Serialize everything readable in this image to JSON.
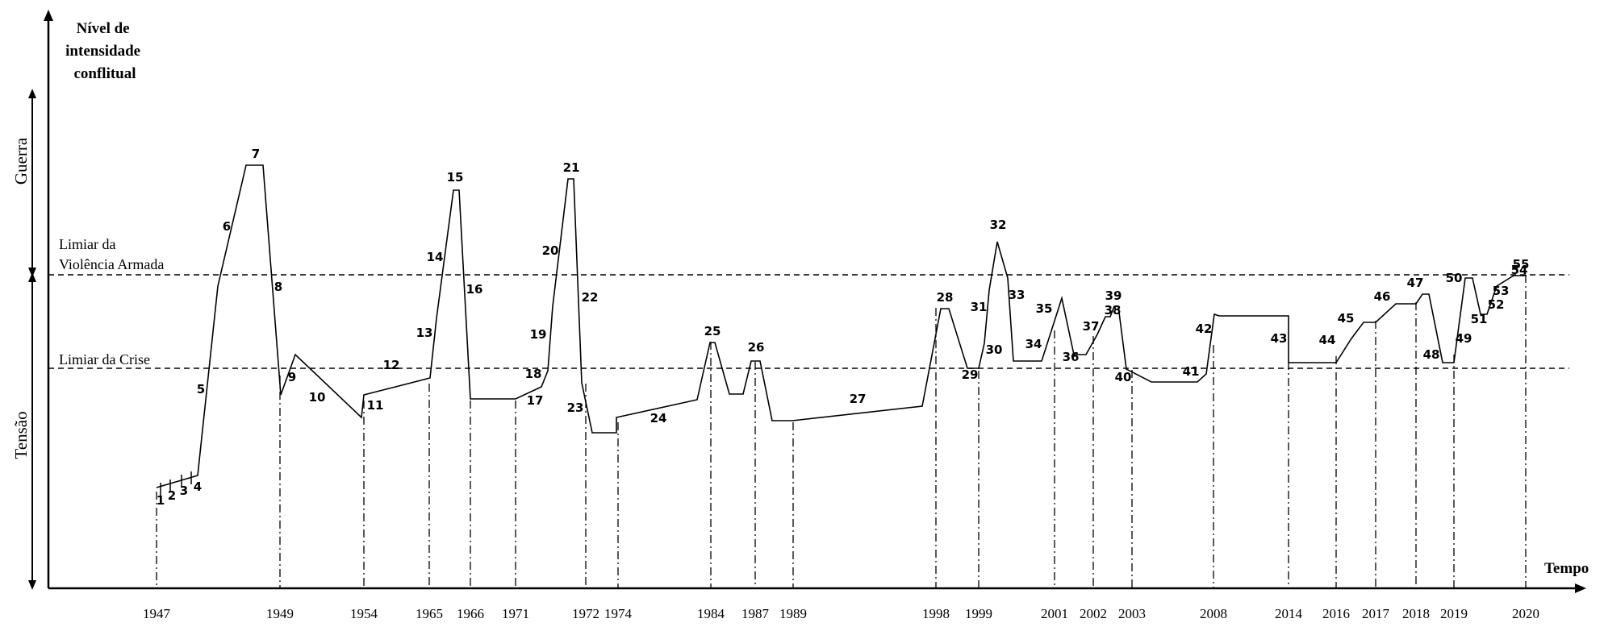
{
  "title_lines": [
    "Nível de",
    "intensidade",
    "conflitual"
  ],
  "x_axis_label": "Tempo",
  "band_labels": {
    "war": "Guerra",
    "tension": "Tensão"
  },
  "thresholds": {
    "armed_violence": [
      "Limiar da",
      "Violência Armada"
    ],
    "crisis": "Limiar da Crise"
  },
  "years": [
    "1947",
    "1949",
    "1954",
    "1965",
    "1966",
    "1971",
    "1972",
    "1974",
    "1984",
    "1987",
    "1989",
    "1998",
    "1999",
    "2001",
    "2002",
    "2003",
    "2008",
    "2014",
    "2016",
    "2017",
    "2018",
    "2019",
    "2020"
  ],
  "event_labels": [
    "1",
    "2",
    "3",
    "4",
    "5",
    "6",
    "7",
    "8",
    "9",
    "10",
    "11",
    "12",
    "13",
    "14",
    "15",
    "16",
    "17",
    "18",
    "19",
    "20",
    "21",
    "22",
    "23",
    "24",
    "25",
    "26",
    "27",
    "28",
    "29",
    "30",
    "31",
    "32",
    "33",
    "34",
    "35",
    "36",
    "37",
    "38",
    "39",
    "40",
    "41",
    "42",
    "43",
    "44",
    "45",
    "46",
    "47",
    "48",
    "49",
    "50",
    "51",
    "52",
    "53",
    "54",
    "55"
  ],
  "colors": {
    "ink": "#000000",
    "background": "#ffffff"
  }
}
